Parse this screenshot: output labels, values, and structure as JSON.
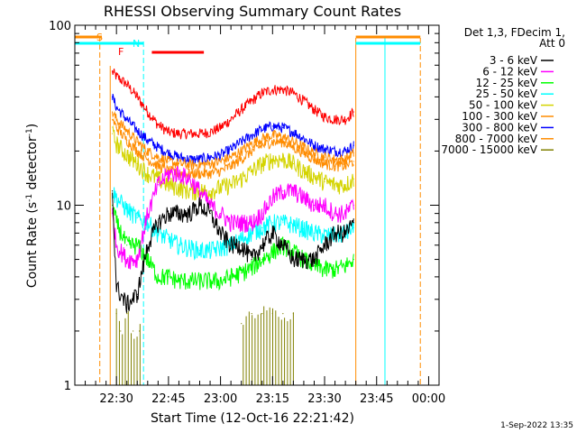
{
  "chart_data": {
    "type": "line",
    "title": "RHESSI Observing Summary Count Rates",
    "xlabel": "Start Time (12-Oct-16 22:21:42)",
    "ylabel": "Count Rate (s",
    "ylabel_superscript": "-1",
    "ylabel_suffix": " detector",
    "ylabel_suffix_superscript": "-1",
    "ylabel_close": ")",
    "yscale": "log",
    "ylim": [
      1,
      100
    ],
    "y_tick_labels": [
      "1",
      "10",
      "100"
    ],
    "xlim_minutes": [
      22.3,
      24.05
    ],
    "x_tick_labels": [
      "22:30",
      "22:45",
      "23:00",
      "23:15",
      "23:30",
      "23:45",
      "00:00"
    ],
    "x_tick_minutes": [
      22.5,
      22.75,
      23.0,
      23.25,
      23.5,
      23.75,
      24.0
    ],
    "legend_title": [
      "Det 1,3, FDecim 1,",
      "Att 0"
    ],
    "legend_position": "right",
    "footer_timestamp": "1-Sep-2022 13:35",
    "annotations": {
      "saa_label": "S",
      "night_label": "N",
      "flare_label": "F"
    },
    "time_markers": {
      "saa_end": 22.42,
      "night_start_segment": [
        22.33,
        22.43
      ],
      "night_start": 22.63,
      "night_end_line": 23.79,
      "flare_start": 22.67,
      "flare_end": 22.92,
      "data_start": 22.47,
      "data_end": 23.65,
      "orange_gap_start": 23.65,
      "orange_gap_end": 23.96
    },
    "series": [
      {
        "name": "3 - 6 keV",
        "color": "#000000",
        "x": [
          22.48,
          22.5,
          22.55,
          22.6,
          22.65,
          22.7,
          22.75,
          22.8,
          22.85,
          22.9,
          22.95,
          23.0,
          23.05,
          23.1,
          23.15,
          23.2,
          23.25,
          23.3,
          23.35,
          23.4,
          23.45,
          23.5,
          23.55,
          23.6,
          23.64
        ],
        "y": [
          12,
          3.5,
          2.8,
          3.2,
          6,
          8,
          9,
          9,
          9,
          10,
          9,
          7,
          6,
          6,
          5,
          6,
          7,
          6,
          5,
          5,
          5,
          6,
          7,
          7,
          8
        ]
      },
      {
        "name": "6 - 12 keV",
        "color": "#ff00ff",
        "x": [
          22.48,
          22.5,
          22.55,
          22.6,
          22.65,
          22.7,
          22.75,
          22.8,
          22.85,
          22.9,
          22.95,
          23.0,
          23.05,
          23.1,
          23.15,
          23.2,
          23.25,
          23.3,
          23.35,
          23.4,
          23.45,
          23.5,
          23.55,
          23.6,
          23.64
        ],
        "y": [
          9,
          6,
          5,
          5,
          9,
          13,
          15,
          15,
          14,
          12,
          10,
          9,
          8,
          8,
          8,
          9,
          11,
          12,
          12,
          11,
          10,
          10,
          9,
          9,
          10
        ]
      },
      {
        "name": "12 - 25 keV",
        "color": "#00ff00",
        "x": [
          22.48,
          22.5,
          22.55,
          22.6,
          22.65,
          22.7,
          22.75,
          22.8,
          22.85,
          22.9,
          22.95,
          23.0,
          23.05,
          23.1,
          23.15,
          23.2,
          23.25,
          23.3,
          23.35,
          23.4,
          23.45,
          23.5,
          23.55,
          23.6,
          23.64
        ],
        "y": [
          10,
          8,
          6,
          6,
          5,
          4,
          4,
          3.8,
          3.8,
          3.8,
          3.8,
          3.8,
          4,
          4.2,
          4.5,
          5,
          5.5,
          6,
          5.5,
          5,
          4.6,
          4.4,
          4.4,
          4.6,
          5
        ]
      },
      {
        "name": "25 - 50 keV",
        "color": "#00ffff",
        "x": [
          22.48,
          22.5,
          22.55,
          22.6,
          22.65,
          22.7,
          22.75,
          22.8,
          22.85,
          22.9,
          22.95,
          23.0,
          23.05,
          23.1,
          23.15,
          23.2,
          23.25,
          23.3,
          23.35,
          23.4,
          23.45,
          23.5,
          23.55,
          23.6,
          23.64
        ],
        "y": [
          12,
          11,
          9.5,
          8.5,
          8,
          7,
          6.5,
          6,
          5.8,
          5.6,
          5.6,
          5.8,
          6,
          6.5,
          7,
          7.5,
          8,
          8,
          7.8,
          7.4,
          7,
          6.8,
          6.8,
          7,
          7.5
        ]
      },
      {
        "name": "50 - 100 keV",
        "color": "#d4d400",
        "x": [
          22.48,
          22.5,
          22.55,
          22.6,
          22.65,
          22.7,
          22.75,
          22.8,
          22.85,
          22.9,
          22.95,
          23.0,
          23.05,
          23.1,
          23.15,
          23.2,
          23.25,
          23.3,
          23.35,
          23.4,
          23.45,
          23.5,
          23.55,
          23.6,
          23.64
        ],
        "y": [
          25,
          22,
          19,
          17,
          15,
          14,
          13,
          12.5,
          12,
          12,
          12,
          12.5,
          13,
          14,
          15.5,
          17,
          18,
          18,
          17,
          15.5,
          14.5,
          13.5,
          13,
          13,
          14
        ]
      },
      {
        "name": "100 - 300 keV",
        "color": "#ff8c00",
        "x": [
          22.48,
          22.5,
          22.55,
          22.6,
          22.65,
          22.7,
          22.75,
          22.8,
          22.85,
          22.9,
          22.95,
          23.0,
          23.05,
          23.1,
          23.15,
          23.2,
          23.25,
          23.3,
          23.35,
          23.4,
          23.45,
          23.5,
          23.55,
          23.6,
          23.64
        ],
        "y": [
          30,
          27,
          23,
          20,
          18,
          16.5,
          15.5,
          15,
          15,
          15,
          15,
          15.5,
          16.5,
          18,
          20,
          21.5,
          22.5,
          22.5,
          21,
          19.5,
          18,
          17,
          16.5,
          16.5,
          17.5
        ]
      },
      {
        "name": "300 - 800 keV",
        "color": "#0000ff",
        "x": [
          22.48,
          22.5,
          22.55,
          22.6,
          22.65,
          22.7,
          22.75,
          22.8,
          22.85,
          22.9,
          22.95,
          23.0,
          23.05,
          23.1,
          23.15,
          23.2,
          23.25,
          23.3,
          23.35,
          23.4,
          23.45,
          23.5,
          23.55,
          23.6,
          23.64
        ],
        "y": [
          40,
          35,
          30,
          26,
          23,
          21,
          19.5,
          18.5,
          18,
          18,
          18.5,
          19,
          20.5,
          22.5,
          24.5,
          26.5,
          27.5,
          27,
          25.5,
          23.5,
          21.5,
          20.5,
          20,
          20,
          21.5
        ]
      },
      {
        "name": "800 - 7000 keV",
        "color": "#ff8c00",
        "x": [
          22.48,
          22.5,
          22.55,
          22.6,
          22.65,
          22.7,
          22.75,
          22.8,
          22.85,
          22.9,
          22.95,
          23.0,
          23.05,
          23.1,
          23.15,
          23.2,
          23.25,
          23.3,
          23.35,
          23.4,
          23.45,
          23.5,
          23.55,
          23.6,
          23.64
        ],
        "y": [
          33,
          30,
          26,
          22.5,
          20,
          18.5,
          17.5,
          17,
          16.8,
          16.8,
          17,
          17.5,
          18.5,
          20,
          22,
          23.5,
          24.5,
          24,
          22.5,
          21,
          19.5,
          18.5,
          18,
          18,
          19.5
        ]
      },
      {
        "name": "7000 - 15000 keV",
        "color": "#808000",
        "x": [
          22.5,
          22.52,
          22.55,
          22.58,
          22.61,
          23.1,
          23.15,
          23.2,
          23.25,
          23.3,
          23.35
        ],
        "y": [
          2.5,
          2,
          2.5,
          2,
          2,
          2.2,
          2.5,
          2.5,
          2.5,
          2.5,
          2.5
        ]
      },
      {
        "name": "",
        "color": "#ff0000",
        "x": [
          22.48,
          22.5,
          22.55,
          22.6,
          22.65,
          22.7,
          22.75,
          22.8,
          22.85,
          22.9,
          22.95,
          23.0,
          23.05,
          23.1,
          23.15,
          23.2,
          23.25,
          23.3,
          23.35,
          23.4,
          23.45,
          23.5,
          23.55,
          23.6,
          23.64
        ],
        "y": [
          55,
          52,
          47,
          40,
          33,
          28,
          25.5,
          25,
          25,
          25,
          25.5,
          27,
          30,
          34,
          38,
          42,
          44,
          44,
          42,
          38,
          34,
          31,
          30,
          30,
          33
        ]
      }
    ]
  }
}
